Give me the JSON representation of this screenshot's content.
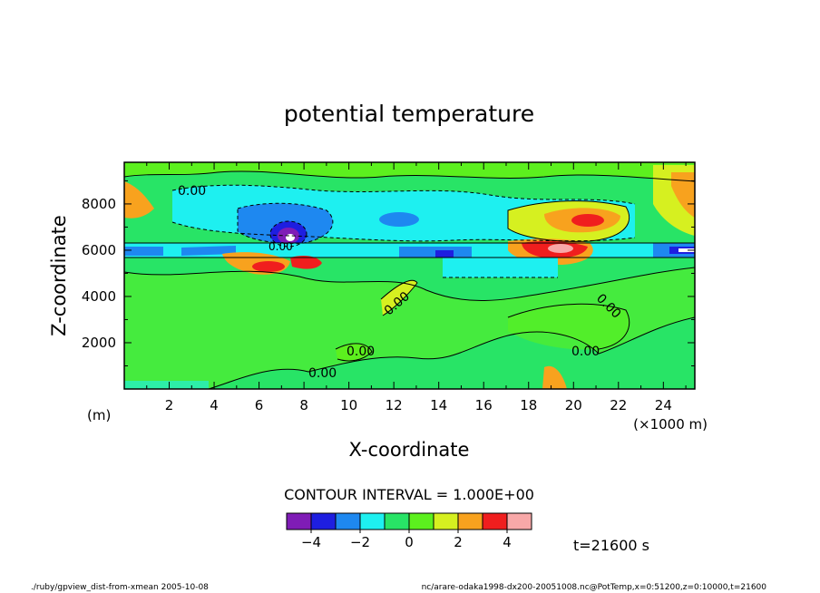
{
  "chart_data": {
    "type": "heatmap",
    "title": "potential temperature",
    "xlabel": "X-coordinate",
    "ylabel": "Z-coordinate",
    "x_unit_left": "(m)",
    "x_unit_right": "(×1000 m)",
    "xlim": [
      0,
      25.4
    ],
    "ylim": [
      0,
      9800
    ],
    "xticks": [
      "2",
      "4",
      "6",
      "8",
      "10",
      "12",
      "14",
      "16",
      "18",
      "20",
      "22",
      "24"
    ],
    "yticks": [
      "2000",
      "4000",
      "6000",
      "8000"
    ],
    "contour_labels": [
      "0.00",
      "0.00",
      "0.00",
      "0.00",
      "0.00",
      "0.00",
      "0.00"
    ],
    "contour_interval": "CONTOUR INTERVAL = 1.000E+00",
    "colorbar": {
      "levels": [
        -5,
        -4,
        -3,
        -2,
        -1,
        0,
        1,
        2,
        3,
        4,
        5
      ],
      "colors": [
        "#7f1cb6",
        "#1e1ee0",
        "#1e88f0",
        "#1ef0f0",
        "#28e466",
        "#5cf01e",
        "#d6f020",
        "#f8a21e",
        "#f01e1e",
        "#f8a8a8"
      ],
      "tick_labels": [
        "−4",
        "−2",
        "0",
        "2",
        "4"
      ]
    },
    "time_label": "t=21600 s",
    "footer_left": "./ruby/gpview_dist-from-xmean   2005-10-08",
    "footer_right": "nc/arare-odaka1998-dx200-20051008.nc@PotTemp,x=0:51200,z=0:10000,t=21600"
  }
}
